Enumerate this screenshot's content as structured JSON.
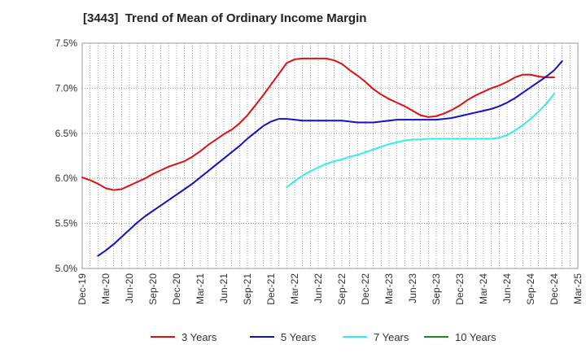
{
  "chart_data": {
    "type": "line",
    "title": "[3443]  Trend of Mean of Ordinary Income Margin",
    "xlabel": "",
    "ylabel": "",
    "x_tick_labels": [
      "Dec-19",
      "Mar-20",
      "Jun-20",
      "Sep-20",
      "Dec-20",
      "Mar-21",
      "Jun-21",
      "Sep-21",
      "Dec-21",
      "Mar-22",
      "Jun-22",
      "Sep-22",
      "Dec-22",
      "Mar-23",
      "Jun-23",
      "Sep-23",
      "Dec-23",
      "Mar-24",
      "Jun-24",
      "Sep-24",
      "Dec-24",
      "Mar-25"
    ],
    "y_tick_labels": [
      "5.0%",
      "5.5%",
      "6.0%",
      "6.5%",
      "7.0%",
      "7.5%"
    ],
    "y_ticks": [
      5.0,
      5.5,
      6.0,
      6.5,
      7.0,
      7.5
    ],
    "ylim": [
      5.0,
      7.5
    ],
    "grid": true,
    "grid_style": "dotted",
    "legend_position": "bottom",
    "months": [
      "Dec-19",
      "Jan-20",
      "Feb-20",
      "Mar-20",
      "Apr-20",
      "May-20",
      "Jun-20",
      "Jul-20",
      "Aug-20",
      "Sep-20",
      "Oct-20",
      "Nov-20",
      "Dec-20",
      "Jan-21",
      "Feb-21",
      "Mar-21",
      "Apr-21",
      "May-21",
      "Jun-21",
      "Jul-21",
      "Aug-21",
      "Sep-21",
      "Oct-21",
      "Nov-21",
      "Dec-21",
      "Jan-22",
      "Feb-22",
      "Mar-22",
      "Apr-22",
      "May-22",
      "Jun-22",
      "Jul-22",
      "Aug-22",
      "Sep-22",
      "Oct-22",
      "Nov-22",
      "Dec-22",
      "Jan-23",
      "Feb-23",
      "Mar-23",
      "Apr-23",
      "May-23",
      "Jun-23",
      "Jul-23",
      "Aug-23",
      "Sep-23",
      "Oct-23",
      "Nov-23",
      "Dec-23",
      "Jan-24",
      "Feb-24",
      "Mar-24",
      "Apr-24",
      "May-24",
      "Jun-24",
      "Jul-24",
      "Aug-24",
      "Sep-24",
      "Oct-24",
      "Nov-24",
      "Dec-24",
      "Jan-25",
      "Feb-25",
      "Mar-25"
    ],
    "series": [
      {
        "name": "3 Years",
        "color": "#dd1111",
        "values": [
          6.01,
          5.98,
          5.94,
          5.89,
          5.87,
          5.88,
          5.92,
          5.96,
          6.0,
          6.05,
          6.09,
          6.13,
          6.16,
          6.19,
          6.24,
          6.3,
          6.37,
          6.43,
          6.49,
          6.54,
          6.61,
          6.7,
          6.81,
          6.92,
          7.04,
          7.16,
          7.28,
          7.32,
          7.33,
          7.33,
          7.33,
          7.33,
          7.31,
          7.27,
          7.2,
          7.14,
          7.07,
          6.99,
          6.93,
          6.88,
          6.84,
          6.8,
          6.75,
          6.7,
          6.68,
          6.69,
          6.72,
          6.76,
          6.81,
          6.87,
          6.92,
          6.96,
          7.0,
          7.03,
          7.07,
          7.12,
          7.15,
          7.15,
          7.13,
          7.12,
          7.12,
          null,
          null,
          null
        ]
      },
      {
        "name": "5 Years",
        "color": "#1111cc",
        "values": [
          null,
          null,
          5.14,
          5.2,
          5.27,
          5.35,
          5.43,
          5.51,
          5.58,
          5.64,
          5.7,
          5.76,
          5.82,
          5.88,
          5.94,
          6.01,
          6.08,
          6.15,
          6.22,
          6.29,
          6.36,
          6.44,
          6.51,
          6.58,
          6.63,
          6.66,
          6.66,
          6.65,
          6.64,
          6.64,
          6.64,
          6.64,
          6.64,
          6.64,
          6.63,
          6.62,
          6.62,
          6.62,
          6.63,
          6.64,
          6.65,
          6.65,
          6.65,
          6.65,
          6.65,
          6.65,
          6.66,
          6.67,
          6.69,
          6.71,
          6.73,
          6.75,
          6.77,
          6.8,
          6.84,
          6.89,
          6.95,
          7.01,
          7.07,
          7.13,
          7.2,
          7.3,
          null,
          null
        ]
      },
      {
        "name": "7 Years",
        "color": "#33eeee",
        "values": [
          null,
          null,
          null,
          null,
          null,
          null,
          null,
          null,
          null,
          null,
          null,
          null,
          null,
          null,
          null,
          null,
          null,
          null,
          null,
          null,
          null,
          null,
          null,
          null,
          null,
          null,
          5.9,
          5.97,
          6.03,
          6.08,
          6.12,
          6.16,
          6.19,
          6.21,
          6.24,
          6.26,
          6.29,
          6.32,
          6.35,
          6.38,
          6.4,
          6.42,
          6.43,
          6.43,
          6.44,
          6.44,
          6.44,
          6.44,
          6.44,
          6.44,
          6.44,
          6.44,
          6.44,
          6.45,
          6.48,
          6.53,
          6.59,
          6.66,
          6.74,
          6.83,
          6.94,
          null,
          null,
          null
        ]
      },
      {
        "name": "10 Years",
        "color": "#228822",
        "values": []
      }
    ]
  }
}
